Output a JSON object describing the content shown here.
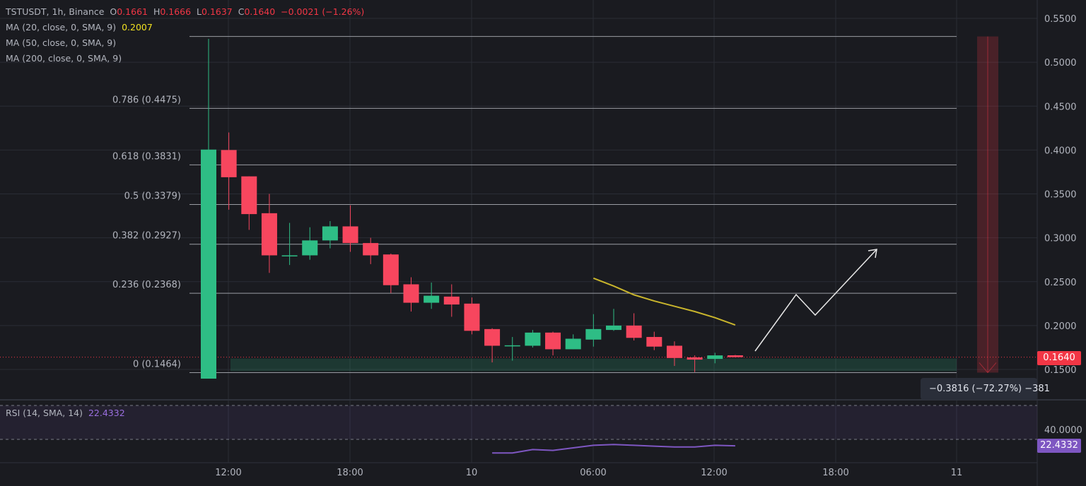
{
  "header": {
    "symbol": "TSTUSDT, 1h, Binance",
    "o_label": "O",
    "o": "0.1661",
    "h_label": "H",
    "h": "0.1666",
    "l_label": "L",
    "l": "0.1637",
    "c_label": "C",
    "c": "0.1640",
    "change": "−0.0021 (−1.26%)"
  },
  "indicators": [
    {
      "label": "MA (20, close, 0, SMA, 9)",
      "value": "0.2007",
      "color": "#f0e020"
    },
    {
      "label": "MA (50, close, 0, SMA, 9)"
    },
    {
      "label": "MA (200, close, 0, SMA, 9)"
    }
  ],
  "rsi": {
    "label": "RSI (14, SMA, 14)",
    "value": "22.4332",
    "color": "#7e57c2",
    "axis_label": "40.0000",
    "badge": "22.4332"
  },
  "price_badge": "0.1640",
  "measure_tooltip": "−0.3816 (−72.27%) −381",
  "colors": {
    "up": "#2ebd85",
    "down": "#f7465e",
    "background": "#1a1b20",
    "ma": "#c9b52c"
  },
  "chart_data": {
    "type": "candlestick",
    "title": "TSTUSDT, 1h, Binance",
    "ylim": [
      0.13,
      0.55
    ],
    "y_ticks": [
      "0.5500",
      "0.5000",
      "0.4500",
      "0.4000",
      "0.3500",
      "0.3000",
      "0.2500",
      "0.2000",
      "0.1500"
    ],
    "x_ticks": [
      "12:00",
      "18:00",
      "10",
      "06:00",
      "12:00",
      "18:00",
      "11"
    ],
    "candles": [
      [
        0.1395,
        0.5267,
        0.1395,
        0.4005
      ],
      [
        0.4,
        0.42,
        0.332,
        0.369
      ],
      [
        0.37,
        0.37,
        0.309,
        0.327
      ],
      [
        0.328,
        0.35,
        0.26,
        0.28
      ],
      [
        0.28,
        0.317,
        0.269,
        0.28
      ],
      [
        0.28,
        0.312,
        0.275,
        0.297
      ],
      [
        0.297,
        0.319,
        0.288,
        0.313
      ],
      [
        0.313,
        0.337,
        0.284,
        0.294
      ],
      [
        0.294,
        0.3,
        0.27,
        0.28
      ],
      [
        0.281,
        0.282,
        0.237,
        0.246
      ],
      [
        0.247,
        0.255,
        0.216,
        0.226
      ],
      [
        0.226,
        0.249,
        0.219,
        0.234
      ],
      [
        0.233,
        0.247,
        0.21,
        0.224
      ],
      [
        0.225,
        0.232,
        0.19,
        0.194
      ],
      [
        0.196,
        0.197,
        0.158,
        0.177
      ],
      [
        0.177,
        0.187,
        0.16,
        0.1775
      ],
      [
        0.177,
        0.195,
        0.175,
        0.192
      ],
      [
        0.192,
        0.193,
        0.166,
        0.173
      ],
      [
        0.173,
        0.19,
        0.173,
        0.185
      ],
      [
        0.184,
        0.213,
        0.176,
        0.196
      ],
      [
        0.195,
        0.219,
        0.194,
        0.2
      ],
      [
        0.2,
        0.214,
        0.183,
        0.186
      ],
      [
        0.187,
        0.193,
        0.172,
        0.176
      ],
      [
        0.177,
        0.182,
        0.154,
        0.163
      ],
      [
        0.1637,
        0.166,
        0.147,
        0.1612
      ],
      [
        0.162,
        0.169,
        0.157,
        0.166
      ],
      [
        0.1661,
        0.1666,
        0.1637,
        0.164
      ]
    ],
    "ma20": {
      "start_index": 19,
      "values": [
        0.254,
        0.245,
        0.235,
        0.228,
        0.222,
        0.216,
        0.209,
        0.2007
      ]
    },
    "fib_levels": [
      {
        "ratio": 1,
        "price": 0.5294,
        "label": ""
      },
      {
        "ratio": 0.786,
        "price": 0.4475,
        "label": "0.786 (0.4475)"
      },
      {
        "ratio": 0.618,
        "price": 0.3831,
        "label": "0.618 (0.3831)"
      },
      {
        "ratio": 0.5,
        "price": 0.3379,
        "label": "0.5 (0.3379)"
      },
      {
        "ratio": 0.382,
        "price": 0.2927,
        "label": "0.382 (0.2927)"
      },
      {
        "ratio": 0.236,
        "price": 0.2368,
        "label": "0.236 (0.2368)"
      },
      {
        "ratio": 0,
        "price": 0.1464,
        "label": "0 (0.1464)"
      }
    ],
    "rsi": {
      "bands": [
        30,
        70
      ],
      "start_index": 14,
      "values": [
        14,
        14,
        18,
        17,
        20,
        23,
        24,
        23,
        22,
        21,
        21,
        23,
        22.43
      ]
    }
  }
}
